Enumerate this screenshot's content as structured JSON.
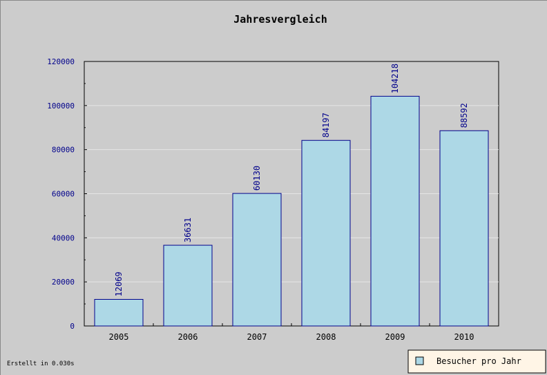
{
  "colors": {
    "background": "#cccccc",
    "plot_background": "#cccccc",
    "bar_fill": "#add8e6",
    "bar_stroke": "#00008b",
    "tick_text": "#00008b",
    "grid": "#e6e6e6",
    "legend_background": "#fff5e6"
  },
  "footer": {
    "text": "Erstellt in 0.030s"
  },
  "chart_data": {
    "type": "bar",
    "title": "Jahresvergleich",
    "xlabel": "",
    "ylabel": "",
    "categories": [
      "2005",
      "2006",
      "2007",
      "2008",
      "2009",
      "2010"
    ],
    "series": [
      {
        "name": "Besucher pro Jahr",
        "values": [
          12069,
          36631,
          60130,
          84197,
          104218,
          88592
        ]
      }
    ],
    "ylim": [
      0,
      120000
    ],
    "yticks": [
      "0",
      "20000",
      "40000",
      "60000",
      "80000",
      "100000",
      "120000"
    ],
    "grid": true,
    "legend_position": "bottom-right",
    "data_labels": true
  }
}
